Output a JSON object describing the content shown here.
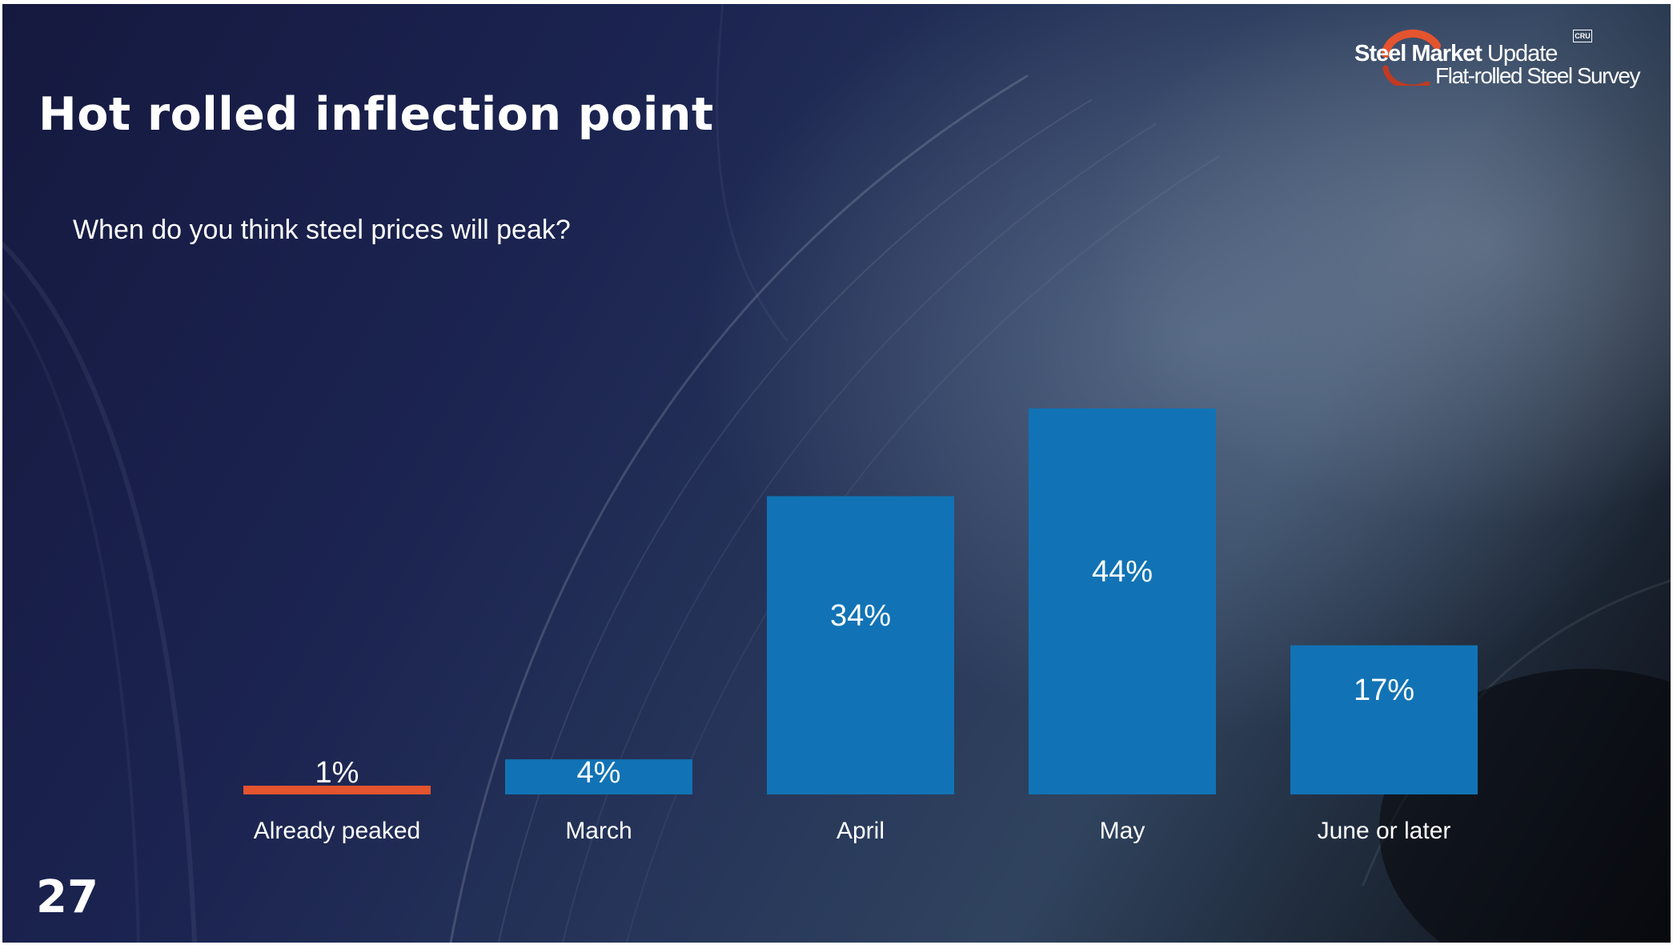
{
  "slide": {
    "title": "Hot rolled inflection point",
    "subtitle": "When do you think steel prices will peak?",
    "page_number": "27"
  },
  "logo": {
    "brand_bold": "Steel Market",
    "brand_light": "Update",
    "badge": "CRU",
    "tagline": "Flat-rolled Steel Survey",
    "icon": "swoosh-arc-icon"
  },
  "colors": {
    "bar_primary": "#1173b5",
    "bar_highlight": "#e4542e",
    "text": "#ffffff"
  },
  "chart_data": {
    "type": "bar",
    "title": "",
    "xlabel": "",
    "ylabel": "",
    "categories": [
      "Already peaked",
      "March",
      "April",
      "May",
      "June or later"
    ],
    "values": [
      1,
      4,
      34,
      44,
      17
    ],
    "value_labels": [
      "1%",
      "4%",
      "34%",
      "44%",
      "17%"
    ],
    "highlight_index": 0,
    "ylim": [
      0,
      44
    ],
    "grid": false,
    "legend": "none"
  }
}
